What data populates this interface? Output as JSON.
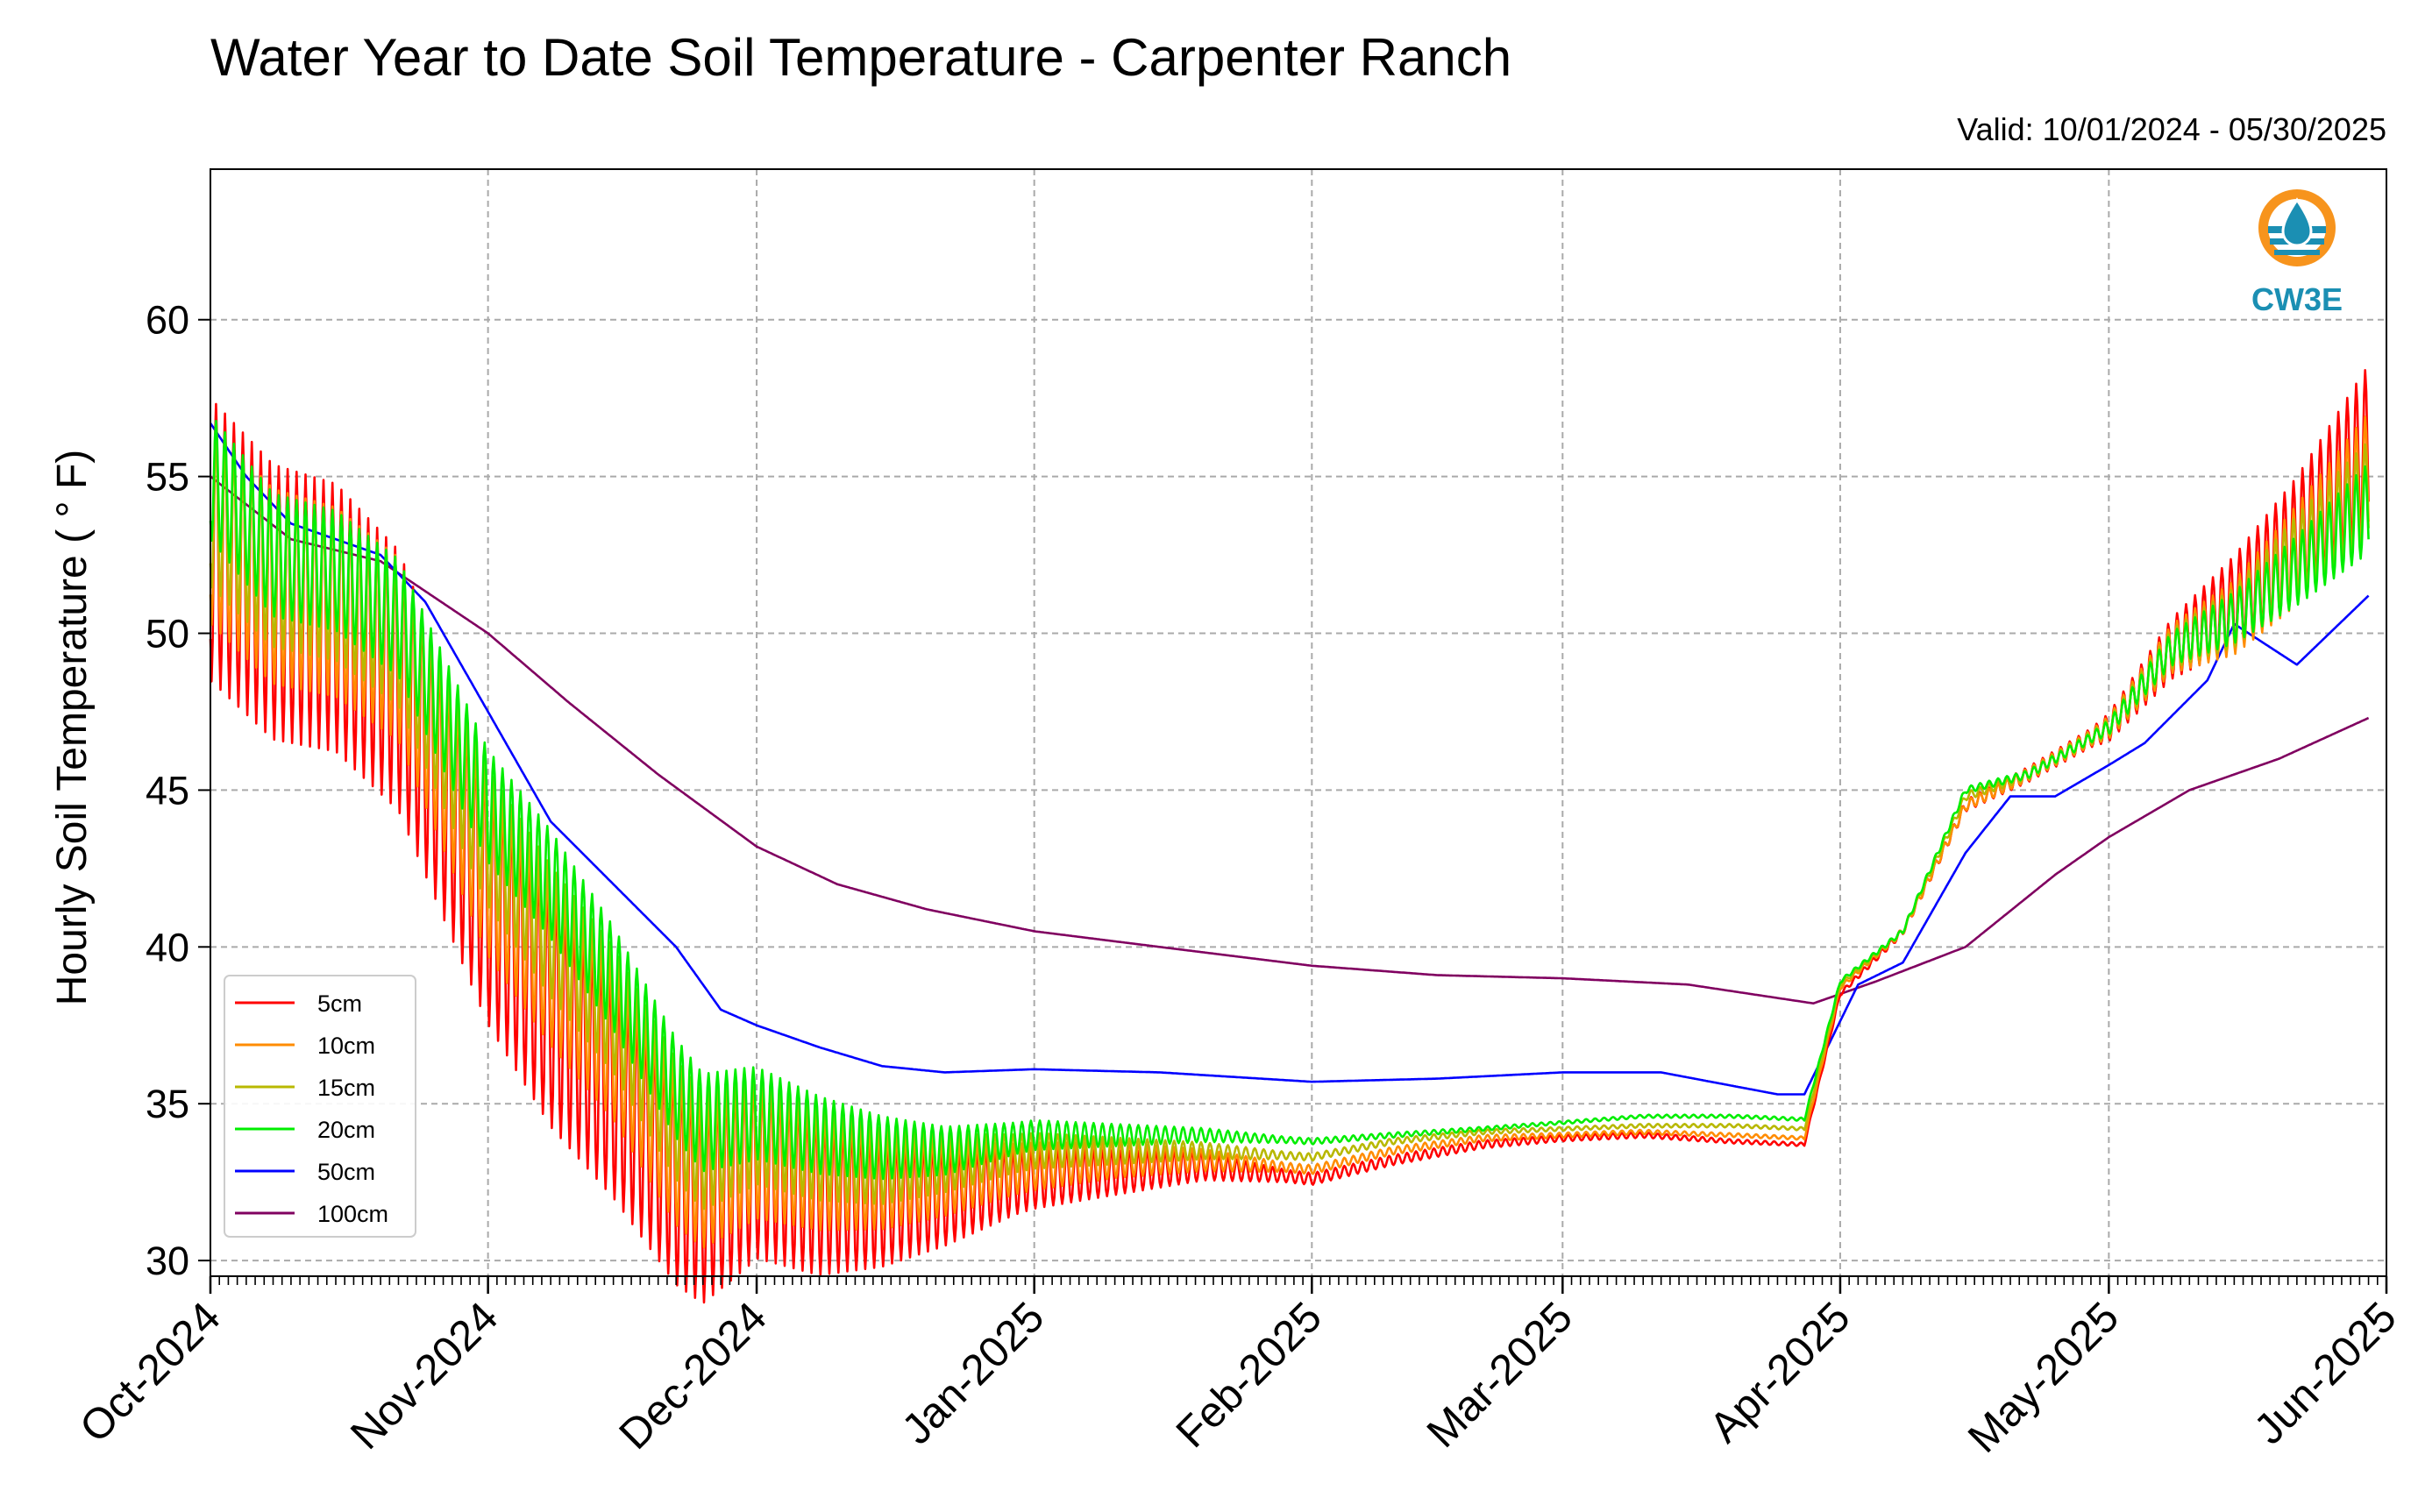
{
  "chart_data": {
    "type": "line",
    "title": "Water Year to Date Soil Temperature - Carpenter Ranch",
    "subtitle": "Valid: 10/01/2024 - 05/30/2025",
    "ylabel": "Hourly Soil Temperature ( ° F)",
    "xlabel": "",
    "ylim": [
      29.5,
      64.8
    ],
    "xlim": [
      "2024-10-01",
      "2025-06-01"
    ],
    "yticks": [
      30,
      35,
      40,
      45,
      50,
      55,
      60
    ],
    "xticks": [
      "2024-10-01",
      "2024-11-01",
      "2024-12-01",
      "2025-01-01",
      "2025-02-01",
      "2025-03-01",
      "2025-04-01",
      "2025-05-01",
      "2025-06-01"
    ],
    "xtick_labels": [
      "Oct-2024",
      "Nov-2024",
      "Dec-2024",
      "Jan-2025",
      "Feb-2025",
      "Mar-2025",
      "Apr-2025",
      "May-2025",
      "Jun-2025"
    ],
    "grid": true,
    "legend_position": "lower-left",
    "logo_text": "CW3E",
    "series": [
      {
        "name": "5cm",
        "color": "#ff0000",
        "amp": [
          4.5,
          4.0,
          3.0,
          1.0,
          0.2,
          0.1,
          0.05,
          0.3,
          2.5,
          4.0,
          4.5
        ],
        "x": [
          "2024-10-01",
          "2024-10-08",
          "2024-10-15",
          "2024-10-22",
          "2024-11-01",
          "2024-11-08",
          "2024-11-15",
          "2024-11-22",
          "2024-11-25",
          "2024-12-01",
          "2024-12-08",
          "2024-12-15",
          "2024-12-22",
          "2025-01-01",
          "2025-01-10",
          "2025-01-20",
          "2025-02-01",
          "2025-02-10",
          "2025-02-20",
          "2025-03-01",
          "2025-03-10",
          "2025-03-20",
          "2025-03-28",
          "2025-04-01",
          "2025-04-08",
          "2025-04-15",
          "2025-04-22",
          "2025-05-01",
          "2025-05-08",
          "2025-05-15",
          "2025-05-22",
          "2025-05-30"
        ],
        "y": [
          53.0,
          51.0,
          50.5,
          48.5,
          41.5,
          38.0,
          35.5,
          32.5,
          31.8,
          33.0,
          32.0,
          31.8,
          32.0,
          32.6,
          32.8,
          33.0,
          32.6,
          33.2,
          33.7,
          33.9,
          34.0,
          33.8,
          33.7,
          38.5,
          40.5,
          44.5,
          45.5,
          47.0,
          49.5,
          51.0,
          53.0,
          56.0
        ]
      },
      {
        "name": "10cm",
        "color": "#ff8c00",
        "amp": [
          3.2,
          2.8,
          2.2,
          0.8,
          0.15,
          0.08,
          0.05,
          0.25,
          2.0,
          3.0,
          3.3
        ],
        "x": [
          "2024-10-01",
          "2024-10-08",
          "2024-10-15",
          "2024-10-22",
          "2024-11-01",
          "2024-11-08",
          "2024-11-15",
          "2024-11-22",
          "2024-11-25",
          "2024-12-01",
          "2024-12-08",
          "2024-12-15",
          "2024-12-22",
          "2025-01-01",
          "2025-01-10",
          "2025-01-20",
          "2025-02-01",
          "2025-02-10",
          "2025-02-20",
          "2025-03-01",
          "2025-03-10",
          "2025-03-20",
          "2025-03-28",
          "2025-04-01",
          "2025-04-08",
          "2025-04-15",
          "2025-04-22",
          "2025-05-01",
          "2025-05-08",
          "2025-05-15",
          "2025-05-22",
          "2025-05-30"
        ],
        "y": [
          53.5,
          51.5,
          51.0,
          49.5,
          42.5,
          39.5,
          37.0,
          33.5,
          32.7,
          33.5,
          32.8,
          32.5,
          32.6,
          33.0,
          33.2,
          33.2,
          32.9,
          33.5,
          33.9,
          34.0,
          34.1,
          34.0,
          33.9,
          38.7,
          40.5,
          44.5,
          45.5,
          47.0,
          49.5,
          50.5,
          52.5,
          55.0
        ]
      },
      {
        "name": "15cm",
        "color": "#b8b800",
        "amp": [
          2.5,
          2.2,
          1.8,
          0.6,
          0.12,
          0.06,
          0.05,
          0.2,
          1.6,
          2.4,
          2.6
        ],
        "x": [
          "2024-10-01",
          "2024-10-08",
          "2024-10-15",
          "2024-10-22",
          "2024-11-01",
          "2024-11-08",
          "2024-11-15",
          "2024-11-22",
          "2024-11-25",
          "2024-12-01",
          "2024-12-08",
          "2024-12-15",
          "2024-12-22",
          "2025-01-01",
          "2025-01-10",
          "2025-01-20",
          "2025-02-01",
          "2025-02-10",
          "2025-02-20",
          "2025-03-01",
          "2025-03-10",
          "2025-03-20",
          "2025-03-28",
          "2025-04-01",
          "2025-04-08",
          "2025-04-15",
          "2025-04-22",
          "2025-05-01",
          "2025-05-08",
          "2025-05-15",
          "2025-05-22",
          "2025-05-30"
        ],
        "y": [
          54.0,
          52.0,
          51.5,
          50.0,
          43.5,
          40.5,
          38.0,
          34.5,
          33.5,
          34.2,
          33.4,
          33.0,
          33.1,
          33.5,
          33.5,
          33.5,
          33.3,
          33.8,
          34.1,
          34.2,
          34.3,
          34.3,
          34.2,
          38.8,
          40.5,
          44.8,
          45.5,
          47.0,
          49.5,
          50.5,
          52.5,
          54.5
        ]
      },
      {
        "name": "20cm",
        "color": "#00ee00",
        "amp": [
          2.0,
          1.8,
          1.5,
          0.5,
          0.1,
          0.05,
          0.05,
          0.15,
          1.4,
          2.0,
          2.2
        ],
        "x": [
          "2024-10-01",
          "2024-10-08",
          "2024-10-15",
          "2024-10-22",
          "2024-11-01",
          "2024-11-08",
          "2024-11-15",
          "2024-11-22",
          "2024-11-25",
          "2024-12-01",
          "2024-12-08",
          "2024-12-15",
          "2024-12-22",
          "2025-01-01",
          "2025-01-10",
          "2025-01-20",
          "2025-02-01",
          "2025-02-10",
          "2025-02-20",
          "2025-03-01",
          "2025-03-10",
          "2025-03-20",
          "2025-03-28",
          "2025-04-01",
          "2025-04-08",
          "2025-04-15",
          "2025-04-22",
          "2025-05-01",
          "2025-05-08",
          "2025-05-15",
          "2025-05-22",
          "2025-05-30"
        ],
        "y": [
          55.0,
          52.5,
          52.0,
          50.5,
          44.5,
          42.0,
          39.0,
          35.5,
          34.4,
          34.7,
          34.0,
          33.6,
          33.5,
          34.0,
          34.0,
          34.0,
          33.8,
          34.0,
          34.2,
          34.4,
          34.6,
          34.6,
          34.5,
          38.9,
          40.5,
          45.0,
          45.5,
          47.0,
          49.5,
          50.5,
          52.0,
          54.0
        ]
      },
      {
        "name": "50cm",
        "color": "#0000ff",
        "amp": [
          0,
          0,
          0,
          0,
          0,
          0,
          0,
          0,
          0,
          0,
          0
        ],
        "x": [
          "2024-10-01",
          "2024-10-05",
          "2024-10-10",
          "2024-10-15",
          "2024-10-20",
          "2024-10-25",
          "2024-11-01",
          "2024-11-08",
          "2024-11-15",
          "2024-11-22",
          "2024-11-27",
          "2024-12-01",
          "2024-12-08",
          "2024-12-15",
          "2024-12-22",
          "2025-01-01",
          "2025-01-15",
          "2025-02-01",
          "2025-02-15",
          "2025-03-01",
          "2025-03-12",
          "2025-03-25",
          "2025-03-28",
          "2025-04-03",
          "2025-04-08",
          "2025-04-15",
          "2025-04-20",
          "2025-04-25",
          "2025-05-01",
          "2025-05-05",
          "2025-05-12",
          "2025-05-15",
          "2025-05-22",
          "2025-05-30"
        ],
        "y": [
          56.7,
          55.0,
          53.5,
          53.0,
          52.5,
          51.0,
          47.5,
          44.0,
          42.0,
          40.0,
          38.0,
          37.5,
          36.8,
          36.2,
          36.0,
          36.1,
          36.0,
          35.7,
          35.8,
          36.0,
          36.0,
          35.3,
          35.3,
          38.8,
          39.5,
          43.0,
          44.8,
          44.8,
          45.8,
          46.5,
          48.5,
          50.3,
          49.0,
          51.2
        ]
      },
      {
        "name": "100cm",
        "color": "#800060",
        "amp": [
          0,
          0,
          0,
          0,
          0,
          0,
          0,
          0,
          0,
          0,
          0
        ],
        "x": [
          "2024-10-01",
          "2024-10-10",
          "2024-10-20",
          "2024-11-01",
          "2024-11-10",
          "2024-11-20",
          "2024-12-01",
          "2024-12-10",
          "2024-12-20",
          "2025-01-01",
          "2025-01-15",
          "2025-02-01",
          "2025-02-15",
          "2025-03-01",
          "2025-03-15",
          "2025-03-29",
          "2025-04-05",
          "2025-04-15",
          "2025-04-25",
          "2025-05-01",
          "2025-05-10",
          "2025-05-20",
          "2025-05-30"
        ],
        "y": [
          55.0,
          53.0,
          52.3,
          50.0,
          47.8,
          45.5,
          43.2,
          42.0,
          41.2,
          40.5,
          40.0,
          39.4,
          39.1,
          39.0,
          38.8,
          38.2,
          38.9,
          40.0,
          42.3,
          43.5,
          45.0,
          46.0,
          47.3
        ]
      }
    ]
  }
}
